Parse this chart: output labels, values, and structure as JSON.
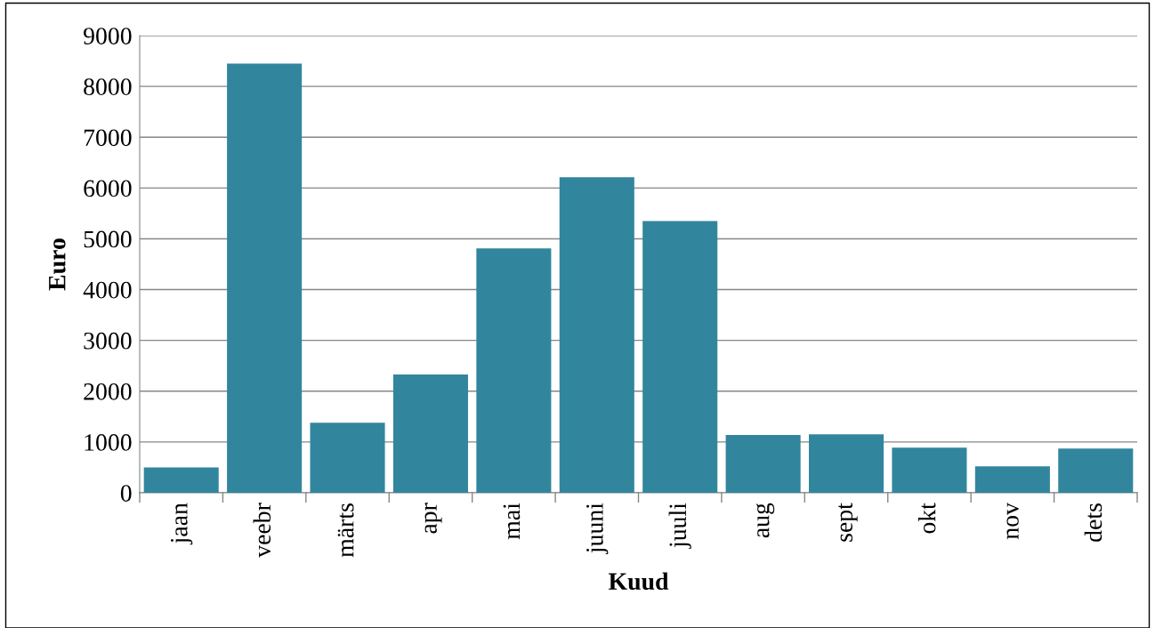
{
  "chart_data": {
    "type": "bar",
    "xlabel": "Kuud",
    "ylabel": "Euro",
    "categories": [
      "jaan",
      "veebr",
      "märts",
      "apr",
      "mai",
      "juuni",
      "juuli",
      "aug",
      "sept",
      "okt",
      "nov",
      "dets"
    ],
    "values": [
      500,
      8450,
      1380,
      2330,
      4810,
      6210,
      5350,
      1140,
      1150,
      890,
      520,
      870
    ],
    "color": "#31869e",
    "ylim": [
      0,
      9000
    ],
    "yticks": [
      0,
      1000,
      2000,
      3000,
      4000,
      5000,
      6000,
      7000,
      8000,
      9000
    ],
    "grid": "y",
    "legend": false
  }
}
